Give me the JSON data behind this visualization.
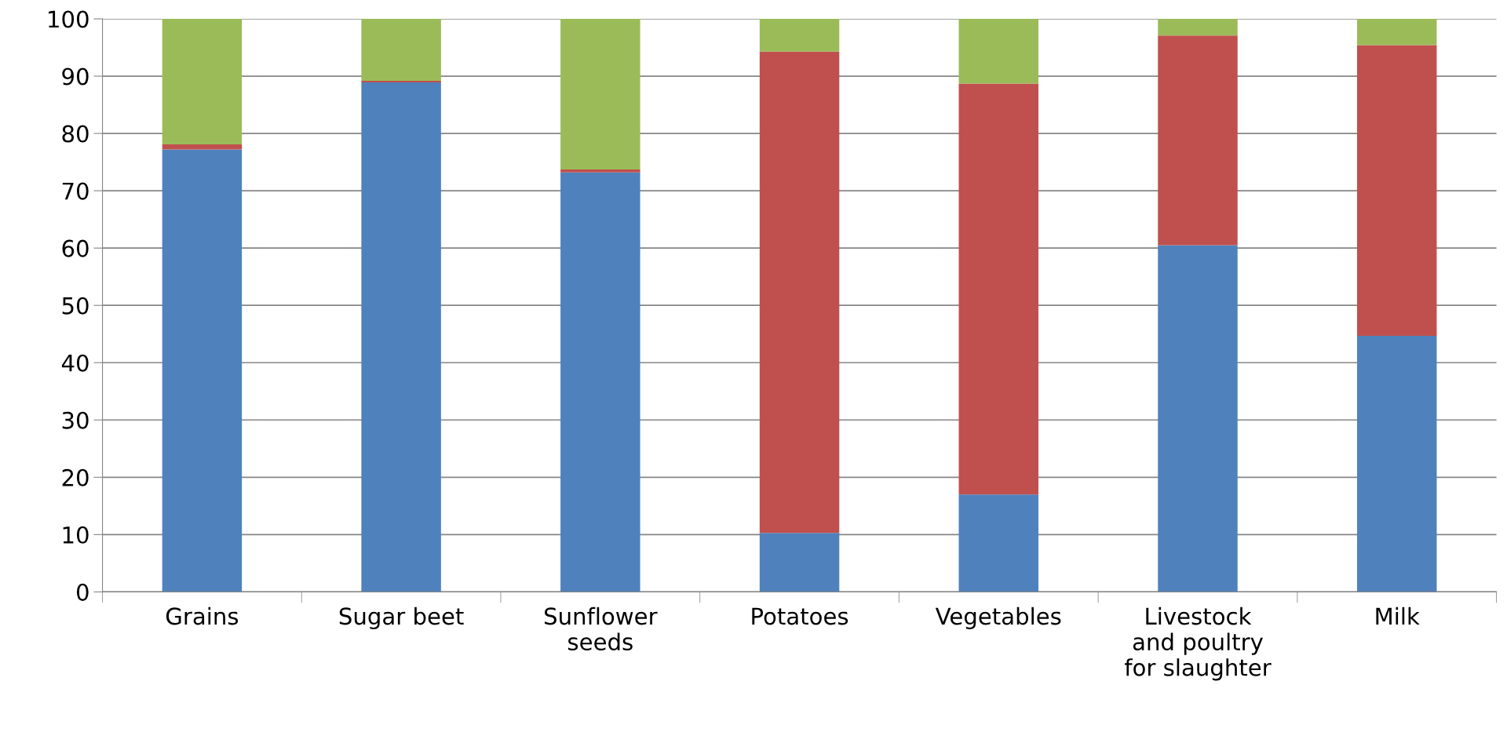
{
  "chart_data": {
    "type": "bar",
    "stacked": true,
    "categories": [
      "Grains",
      "Sugar beet",
      "Sunflower\nseeds",
      "Potatoes",
      "Vegetables",
      "Livestock\nand poultry\nfor slaughter",
      "Milk"
    ],
    "series": [
      {
        "color": "#4f81bd",
        "values": [
          77.2,
          88.9,
          73.2,
          10.3,
          17.0,
          60.5,
          44.7
        ]
      },
      {
        "color": "#c0504d",
        "values": [
          0.9,
          0.3,
          0.5,
          84.0,
          71.7,
          36.6,
          50.7
        ]
      },
      {
        "color": "#9bbb59",
        "values": [
          21.9,
          10.8,
          26.3,
          5.7,
          11.3,
          2.9,
          4.6
        ]
      }
    ],
    "ylim": [
      0,
      100
    ],
    "yticks": [
      0,
      10,
      20,
      30,
      40,
      50,
      60,
      70,
      80,
      90,
      100
    ],
    "grid": "y",
    "legend": false
  }
}
